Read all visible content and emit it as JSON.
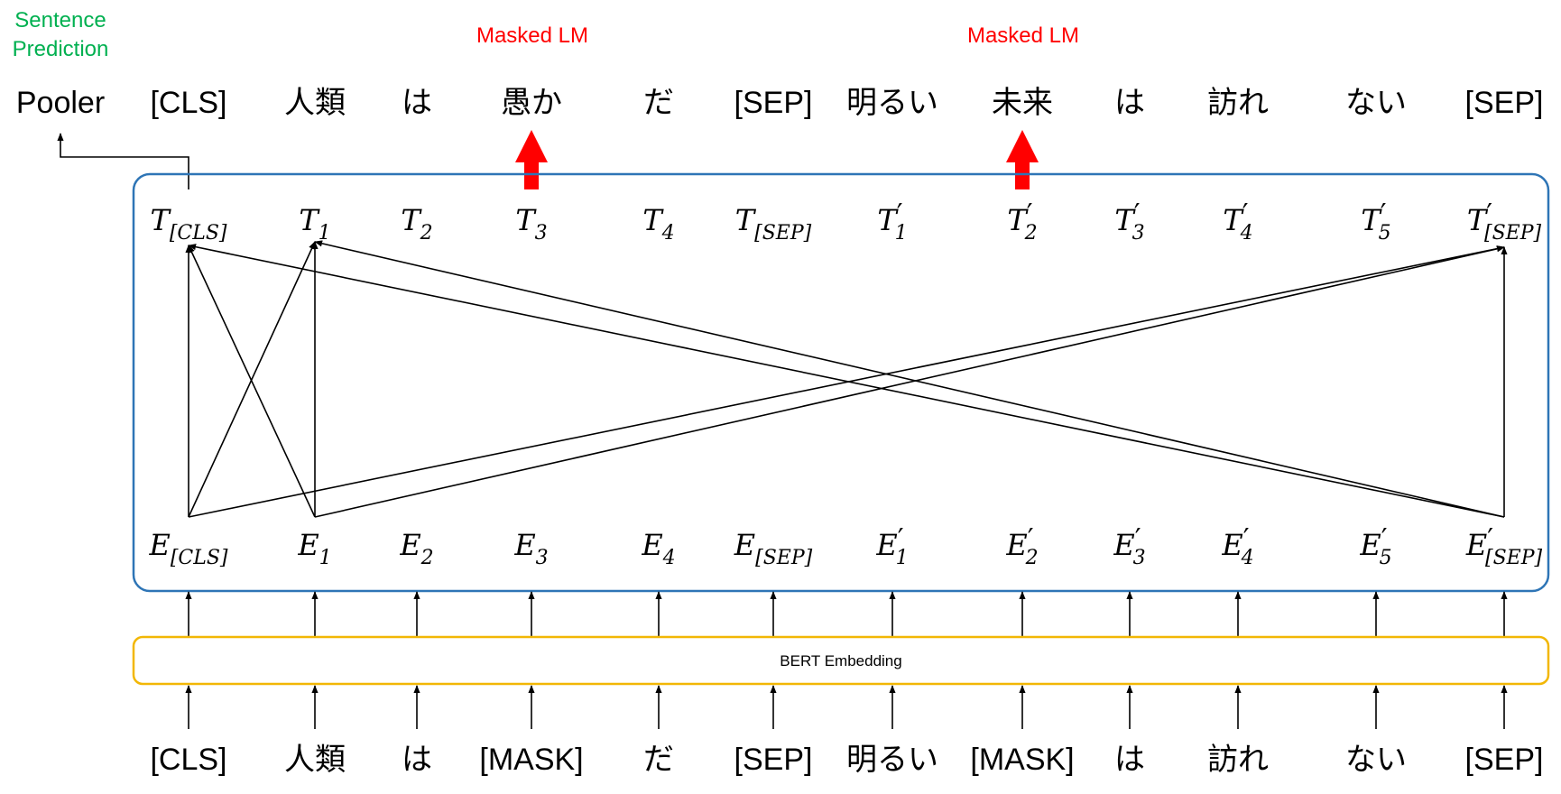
{
  "sentence_prediction": {
    "line1": "Sentence",
    "line2": "Prediction"
  },
  "pooler": "Pooler",
  "masked_lm_left": "Masked LM",
  "masked_lm_right": "Masked LM",
  "top_tokens": [
    "[CLS]",
    "人類",
    "は",
    "愚か",
    "だ",
    "[SEP]",
    "明るい",
    "未来",
    "は",
    "訪れ",
    "ない",
    "[SEP]"
  ],
  "bottom_tokens": [
    "[CLS]",
    "人類",
    "は",
    "[MASK]",
    "だ",
    "[SEP]",
    "明るい",
    "[MASK]",
    "は",
    "訪れ",
    "ない",
    "[SEP]"
  ],
  "t_labels": [
    {
      "main": "T",
      "sub": "[CLS]",
      "prime": false
    },
    {
      "main": "T",
      "sub": "1",
      "prime": false
    },
    {
      "main": "T",
      "sub": "2",
      "prime": false
    },
    {
      "main": "T",
      "sub": "3",
      "prime": false
    },
    {
      "main": "T",
      "sub": "4",
      "prime": false
    },
    {
      "main": "T",
      "sub": "[SEP]",
      "prime": false
    },
    {
      "main": "T",
      "sub": "1",
      "prime": true
    },
    {
      "main": "T",
      "sub": "2",
      "prime": true
    },
    {
      "main": "T",
      "sub": "3",
      "prime": true
    },
    {
      "main": "T",
      "sub": "4",
      "prime": true
    },
    {
      "main": "T",
      "sub": "5",
      "prime": true
    },
    {
      "main": "T",
      "sub": "[SEP]",
      "prime": true
    }
  ],
  "e_labels": [
    {
      "main": "E",
      "sub": "[CLS]",
      "prime": false
    },
    {
      "main": "E",
      "sub": "1",
      "prime": false
    },
    {
      "main": "E",
      "sub": "2",
      "prime": false
    },
    {
      "main": "E",
      "sub": "3",
      "prime": false
    },
    {
      "main": "E",
      "sub": "4",
      "prime": false
    },
    {
      "main": "E",
      "sub": "[SEP]",
      "prime": false
    },
    {
      "main": "E",
      "sub": "1",
      "prime": true
    },
    {
      "main": "E",
      "sub": "2",
      "prime": true
    },
    {
      "main": "E",
      "sub": "3",
      "prime": true
    },
    {
      "main": "E",
      "sub": "4",
      "prime": true
    },
    {
      "main": "E",
      "sub": "5",
      "prime": true
    },
    {
      "main": "E",
      "sub": "[SEP]",
      "prime": true
    }
  ],
  "embedding_label": "BERT Embedding",
  "colors": {
    "transformer_border": "#2e75b6",
    "embedding_border": "#f2b705",
    "masked_lm": "#ff0000",
    "sentence_prediction": "#00b050",
    "line": "#000000"
  }
}
